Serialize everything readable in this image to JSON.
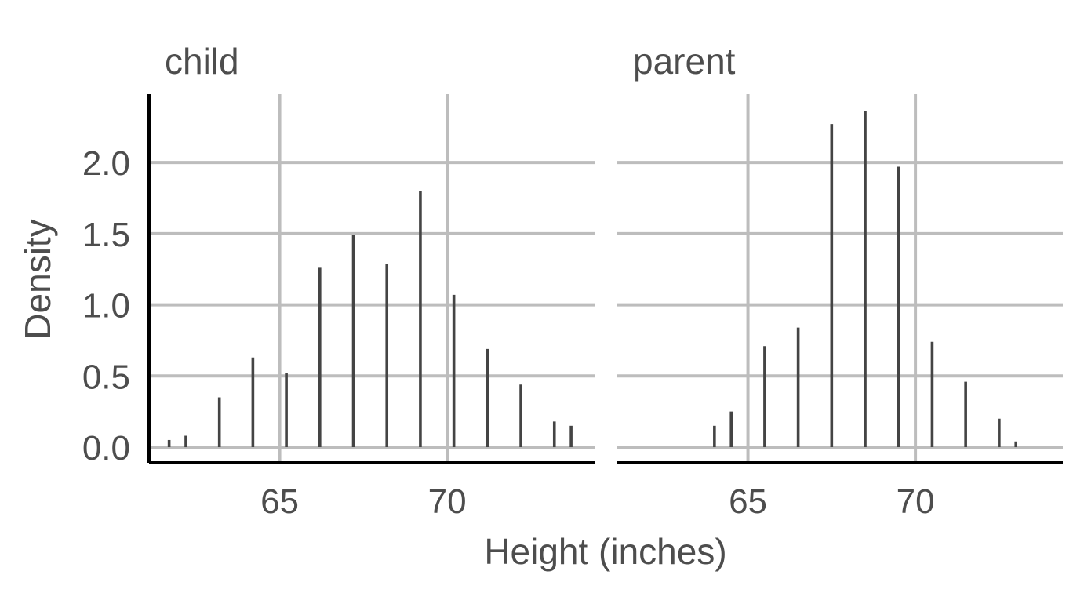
{
  "chart_data": {
    "type": "bar",
    "xlabel": "Height (inches)",
    "ylabel": "Density",
    "xlim": [
      61.1,
      74.4
    ],
    "ylim": [
      -0.11,
      2.48
    ],
    "x_ticks": [
      65,
      70
    ],
    "y_ticks": [
      0.0,
      0.5,
      1.0,
      1.5,
      2.0
    ],
    "y_tick_labels": [
      "0.0",
      "0.5",
      "1.0",
      "1.5",
      "2.0"
    ],
    "grid": true,
    "colors": {
      "bar": "#444444",
      "grid": "#bdbdbd",
      "axis": "#000000",
      "text": "#4d4d4d"
    },
    "panels": [
      {
        "title": "child",
        "x": [
          61.7,
          62.2,
          63.2,
          64.2,
          65.2,
          66.2,
          67.2,
          68.2,
          69.2,
          70.2,
          71.2,
          72.2,
          73.2,
          73.7
        ],
        "values": [
          0.05,
          0.08,
          0.35,
          0.63,
          0.52,
          1.26,
          1.49,
          1.29,
          1.8,
          1.07,
          0.69,
          0.44,
          0.18,
          0.15
        ]
      },
      {
        "title": "parent",
        "x": [
          64.0,
          64.5,
          65.5,
          66.5,
          67.5,
          68.5,
          69.5,
          70.5,
          71.5,
          72.5,
          73.0
        ],
        "values": [
          0.15,
          0.25,
          0.71,
          0.84,
          2.27,
          2.36,
          1.97,
          0.74,
          0.46,
          0.2,
          0.04
        ]
      }
    ]
  }
}
